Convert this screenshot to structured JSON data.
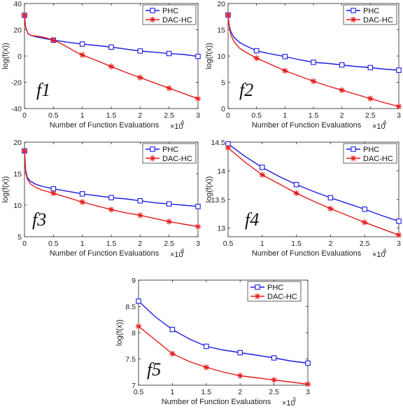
{
  "colors": {
    "phc": "#1a1ae6",
    "dac": "#e61a1a",
    "axis": "#222222"
  },
  "chart_data": [
    {
      "type": "line",
      "panel_label": "f1",
      "xlabel": "Number of Function Evaluations",
      "xexp": "×10",
      "xexp_power": "6",
      "ylabel": "log(f(x))",
      "xlim": [
        0,
        3
      ],
      "ylim": [
        -40,
        40
      ],
      "xticks": [
        0,
        0.5,
        1,
        1.5,
        2,
        2.5,
        3
      ],
      "xtick_labels": [
        "0",
        "0.5",
        "1",
        "1.5",
        "2",
        "2.5",
        "3"
      ],
      "yticks": [
        -40,
        -20,
        0,
        20,
        40
      ],
      "ytick_labels": [
        "-40",
        "-20",
        "0",
        "20",
        "40"
      ],
      "legend": [
        "PHC",
        "DAC-HC"
      ],
      "series": [
        {
          "name": "PHC",
          "marker": "square",
          "x": [
            0,
            0.02,
            0.06,
            0.12,
            0.2,
            0.3,
            0.5,
            0.75,
            1,
            1.25,
            1.5,
            1.75,
            2,
            2.25,
            2.5,
            2.75,
            3
          ],
          "y": [
            31,
            22,
            17,
            15.6,
            14.6,
            13.7,
            12.1,
            10.5,
            9.1,
            8.0,
            6.8,
            5.3,
            3.8,
            2.9,
            1.9,
            1.2,
            -0.3
          ]
        },
        {
          "name": "DAC-HC",
          "marker": "star",
          "x": [
            0,
            0.02,
            0.06,
            0.12,
            0.2,
            0.3,
            0.4,
            0.5,
            0.6,
            0.75,
            0.9,
            1,
            1.25,
            1.5,
            1.75,
            2,
            2.25,
            2.5,
            2.75,
            3
          ],
          "y": [
            31,
            22,
            17,
            15.6,
            15.2,
            14.6,
            13.5,
            12,
            10.2,
            6.6,
            2.8,
            0.8,
            -3.5,
            -8,
            -12.4,
            -16.4,
            -20.5,
            -24.5,
            -28.5,
            -32.5
          ]
        }
      ]
    },
    {
      "type": "line",
      "panel_label": "f2",
      "xlabel": "Number of Function Evaluations",
      "xexp": "×10",
      "xexp_power": "6",
      "ylabel": "log(f(x))",
      "xlim": [
        0,
        3
      ],
      "ylim": [
        0,
        20
      ],
      "xticks": [
        0,
        0.5,
        1,
        1.5,
        2,
        2.5,
        3
      ],
      "xtick_labels": [
        "0",
        "0.5",
        "1",
        "1.5",
        "2",
        "2.5",
        "3"
      ],
      "yticks": [
        0,
        5,
        10,
        15,
        20
      ],
      "ytick_labels": [
        "0",
        "5",
        "10",
        "15",
        "20"
      ],
      "legend": [
        "PHC",
        "DAC-HC"
      ],
      "series": [
        {
          "name": "PHC",
          "marker": "square",
          "x": [
            0,
            0.02,
            0.05,
            0.1,
            0.2,
            0.3,
            0.5,
            0.75,
            1,
            1.25,
            1.5,
            1.75,
            2,
            2.25,
            2.5,
            2.75,
            3
          ],
          "y": [
            17.8,
            15.8,
            14.6,
            13.6,
            12.6,
            12.0,
            11.0,
            10.4,
            9.9,
            9.3,
            8.8,
            8.6,
            8.3,
            8.0,
            7.8,
            7.5,
            7.3
          ]
        },
        {
          "name": "DAC-HC",
          "marker": "star",
          "x": [
            0,
            0.02,
            0.05,
            0.1,
            0.2,
            0.3,
            0.5,
            0.75,
            1,
            1.25,
            1.5,
            1.75,
            2,
            2.25,
            2.5,
            2.75,
            3
          ],
          "y": [
            17.8,
            15.5,
            14.0,
            12.8,
            11.5,
            10.8,
            9.6,
            8.4,
            7.2,
            6.2,
            5.2,
            4.3,
            3.5,
            2.7,
            1.9,
            1.1,
            0.4
          ]
        }
      ]
    },
    {
      "type": "line",
      "panel_label": "f3",
      "xlabel": "Number of Function Evaluations",
      "xexp": "×10",
      "xexp_power": "6",
      "ylabel": "log(f(x))",
      "xlim": [
        0,
        3
      ],
      "ylim": [
        5,
        20
      ],
      "xticks": [
        0,
        0.5,
        1,
        1.5,
        2,
        2.5,
        3
      ],
      "xtick_labels": [
        "0",
        "0.5",
        "1",
        "1.5",
        "2",
        "2.5",
        "3"
      ],
      "yticks": [
        5,
        10,
        15,
        20
      ],
      "ytick_labels": [
        "5",
        "10",
        "15",
        "20"
      ],
      "legend": [
        "PHC",
        "DAC-HC"
      ],
      "series": [
        {
          "name": "PHC",
          "marker": "square",
          "x": [
            0,
            0.02,
            0.05,
            0.1,
            0.2,
            0.3,
            0.5,
            0.75,
            1,
            1.25,
            1.5,
            1.75,
            2,
            2.25,
            2.5,
            2.75,
            3
          ],
          "y": [
            18.6,
            15.6,
            14.4,
            13.8,
            13.3,
            13.0,
            12.6,
            12.2,
            11.8,
            11.5,
            11.2,
            11.0,
            10.7,
            10.4,
            10.2,
            10.0,
            9.8
          ]
        },
        {
          "name": "DAC-HC",
          "marker": "star",
          "x": [
            0,
            0.02,
            0.05,
            0.1,
            0.2,
            0.3,
            0.5,
            0.75,
            1,
            1.25,
            1.5,
            1.75,
            2,
            2.25,
            2.5,
            2.75,
            3
          ],
          "y": [
            18.6,
            15.3,
            14.1,
            13.4,
            12.8,
            12.4,
            11.9,
            11.2,
            10.5,
            9.9,
            9.3,
            8.8,
            8.4,
            7.9,
            7.4,
            7.0,
            6.6
          ]
        }
      ]
    },
    {
      "type": "line",
      "panel_label": "f4",
      "xlabel": "Number of Function Evaluations",
      "xexp": "×10",
      "xexp_power": "6",
      "ylabel": "log(f(x))",
      "xlim": [
        0.5,
        3
      ],
      "ylim": [
        12.85,
        14.5
      ],
      "xticks": [
        0.5,
        1,
        1.5,
        2,
        2.5,
        3
      ],
      "xtick_labels": [
        "0.5",
        "1",
        "1.5",
        "2",
        "2.5",
        "3"
      ],
      "yticks": [
        13,
        13.5,
        14,
        14.5
      ],
      "ytick_labels": [
        "13",
        "13.5",
        "14",
        "14.5"
      ],
      "legend": [
        "PHC",
        "DAC-HC"
      ],
      "series": [
        {
          "name": "PHC",
          "marker": "square",
          "x": [
            0.5,
            0.75,
            1,
            1.25,
            1.5,
            1.75,
            2,
            2.25,
            2.5,
            2.75,
            3
          ],
          "y": [
            14.47,
            14.25,
            14.06,
            13.9,
            13.76,
            13.64,
            13.53,
            13.43,
            13.33,
            13.22,
            13.12
          ]
        },
        {
          "name": "DAC-HC",
          "marker": "star",
          "x": [
            0.5,
            0.75,
            1,
            1.25,
            1.5,
            1.75,
            2,
            2.25,
            2.5,
            2.75,
            3
          ],
          "y": [
            14.4,
            14.15,
            13.93,
            13.77,
            13.61,
            13.47,
            13.34,
            13.22,
            13.1,
            12.99,
            12.88
          ]
        }
      ]
    },
    {
      "type": "line",
      "panel_label": "f5",
      "xlabel": "Number of Function Evaluations",
      "xexp": "×10",
      "xexp_power": "5",
      "ylabel": "log(f(x))",
      "xlim": [
        0.5,
        3
      ],
      "ylim": [
        7,
        9
      ],
      "xticks": [
        0.5,
        1,
        1.5,
        2,
        2.5,
        3
      ],
      "xtick_labels": [
        "0.5",
        "1",
        "1.5",
        "2",
        "2.5",
        "3"
      ],
      "yticks": [
        7,
        7.5,
        8,
        8.5,
        9
      ],
      "ytick_labels": [
        "7",
        "7.5",
        "8",
        "8.5",
        "9"
      ],
      "legend": [
        "PHC",
        "DAC-HC"
      ],
      "series": [
        {
          "name": "PHC",
          "marker": "square",
          "x": [
            0.5,
            0.75,
            1,
            1.25,
            1.5,
            1.75,
            2,
            2.25,
            2.5,
            2.75,
            3
          ],
          "y": [
            8.6,
            8.3,
            8.06,
            7.88,
            7.74,
            7.67,
            7.62,
            7.57,
            7.52,
            7.46,
            7.42
          ]
        },
        {
          "name": "DAC-HC",
          "marker": "star",
          "x": [
            0.5,
            0.75,
            1,
            1.25,
            1.5,
            1.75,
            2,
            2.25,
            2.5,
            2.75,
            3
          ],
          "y": [
            8.12,
            7.86,
            7.6,
            7.45,
            7.34,
            7.25,
            7.18,
            7.14,
            7.1,
            7.06,
            7.02
          ]
        }
      ]
    }
  ]
}
